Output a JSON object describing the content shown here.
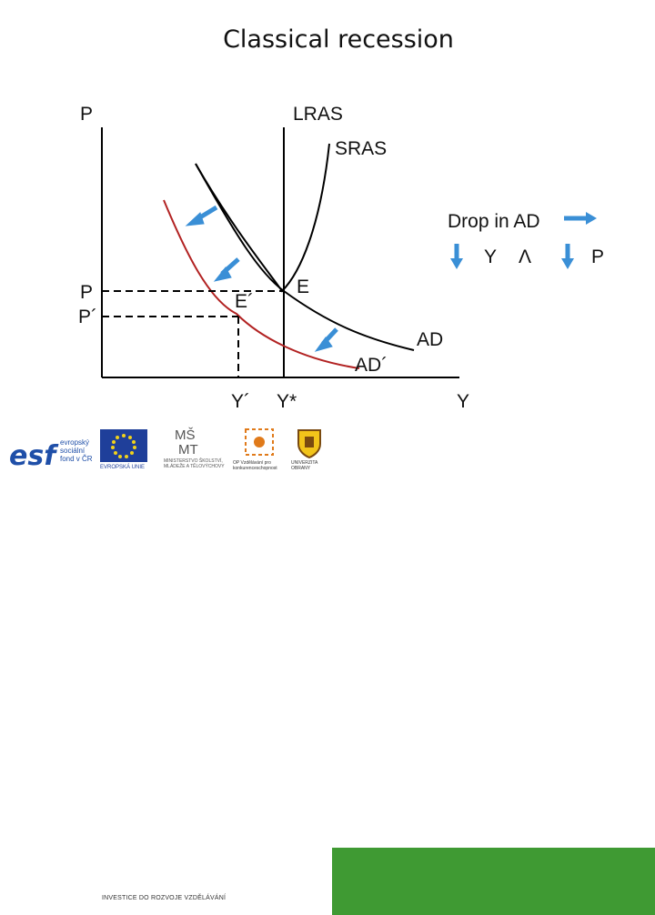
{
  "title": "Classical recession",
  "axis": {
    "y_label": "P",
    "x_label": "Y"
  },
  "curves": {
    "lras": "LRAS",
    "sras": "SRAS",
    "ad": "AD",
    "ad_new": "AD´"
  },
  "points": {
    "e": "E",
    "e_new": "E´"
  },
  "price_labels": {
    "p": "P",
    "p_new": "P´"
  },
  "output_labels": {
    "y_new": "Y´",
    "y_star": "Y*"
  },
  "annotation": {
    "drop_label": "Drop in AD",
    "y": "Y",
    "and": "Λ",
    "p": "P"
  },
  "colors": {
    "arrow": "#3a8fd6",
    "ad_new_curve": "#b22222",
    "axis": "#000000",
    "footer_band": "#3f9a33"
  },
  "footer": {
    "logos": [
      {
        "name": "esf-logo",
        "text": "esf"
      },
      {
        "name": "esf-logo-caption",
        "text": "evropský sociální fond v ČR"
      },
      {
        "name": "eu-logo-caption",
        "text": "EVROPSKÁ UNIE"
      },
      {
        "name": "msmt-logo-caption",
        "text": "MINISTERSTVO ŠKOLSTVÍ, MLÁDEŽE A TĚLOVÝCHOVY"
      },
      {
        "name": "op-logo-caption",
        "text": "OP Vzdělávání pro konkurenceschopnost"
      },
      {
        "name": "uni-logo-caption",
        "text": "UNIVERZITA OBRANY"
      }
    ],
    "tagline": "INVESTICE DO ROZVOJE VZDĚLÁVÁNÍ"
  }
}
